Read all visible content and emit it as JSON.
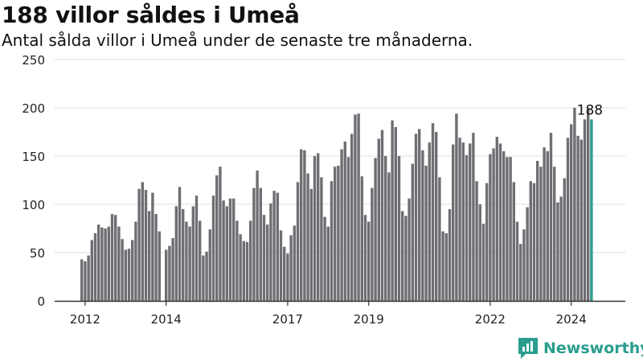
{
  "title": "188 villor såldes i Umeå",
  "subtitle": "Antal sålda villor i Umeå under de senaste tre månaderna.",
  "brand": "Newsworthy",
  "colors": {
    "bar": "#6f6e73",
    "highlight": "#2a9d8f",
    "grid": "#dddddd",
    "axis": "#333333"
  },
  "chart_data": {
    "type": "bar",
    "title": "188 villor såldes i Umeå",
    "subtitle": "Antal sålda villor i Umeå under de senaste tre månaderna.",
    "xlabel": "",
    "ylabel": "",
    "ylim": [
      0,
      250
    ],
    "yticks": [
      0,
      50,
      100,
      150,
      200,
      250
    ],
    "xticks": [
      {
        "label": "2012",
        "index": 1
      },
      {
        "label": "2014",
        "index": 25
      },
      {
        "label": "2017",
        "index": 61
      },
      {
        "label": "2019",
        "index": 85
      },
      {
        "label": "2022",
        "index": 121
      },
      {
        "label": "2024",
        "index": 145
      }
    ],
    "grid": true,
    "highlight_label": "188",
    "values": [
      43,
      41,
      47,
      63,
      70,
      79,
      76,
      75,
      77,
      90,
      89,
      77,
      64,
      53,
      54,
      63,
      82,
      116,
      123,
      115,
      93,
      112,
      90,
      72,
      0,
      53,
      57,
      65,
      98,
      118,
      95,
      82,
      77,
      98,
      109,
      83,
      47,
      51,
      74,
      109,
      130,
      139,
      104,
      98,
      106,
      106,
      83,
      69,
      62,
      61,
      83,
      117,
      135,
      117,
      89,
      79,
      101,
      114,
      112,
      73,
      56,
      49,
      68,
      78,
      123,
      157,
      156,
      132,
      116,
      150,
      153,
      128,
      87,
      77,
      124,
      139,
      140,
      157,
      165,
      149,
      173,
      193,
      194,
      129,
      89,
      82,
      117,
      148,
      168,
      177,
      150,
      133,
      187,
      180,
      150,
      93,
      88,
      106,
      142,
      173,
      178,
      156,
      140,
      164,
      184,
      175,
      128,
      72,
      70,
      95,
      162,
      194,
      169,
      164,
      151,
      163,
      174,
      124,
      100,
      80,
      122,
      152,
      158,
      170,
      163,
      155,
      149,
      149,
      123,
      82,
      59,
      74,
      97,
      124,
      122,
      145,
      139,
      159,
      155,
      174,
      139,
      102,
      108,
      127,
      169,
      183,
      200,
      171,
      167,
      188,
      199,
      188
    ]
  }
}
